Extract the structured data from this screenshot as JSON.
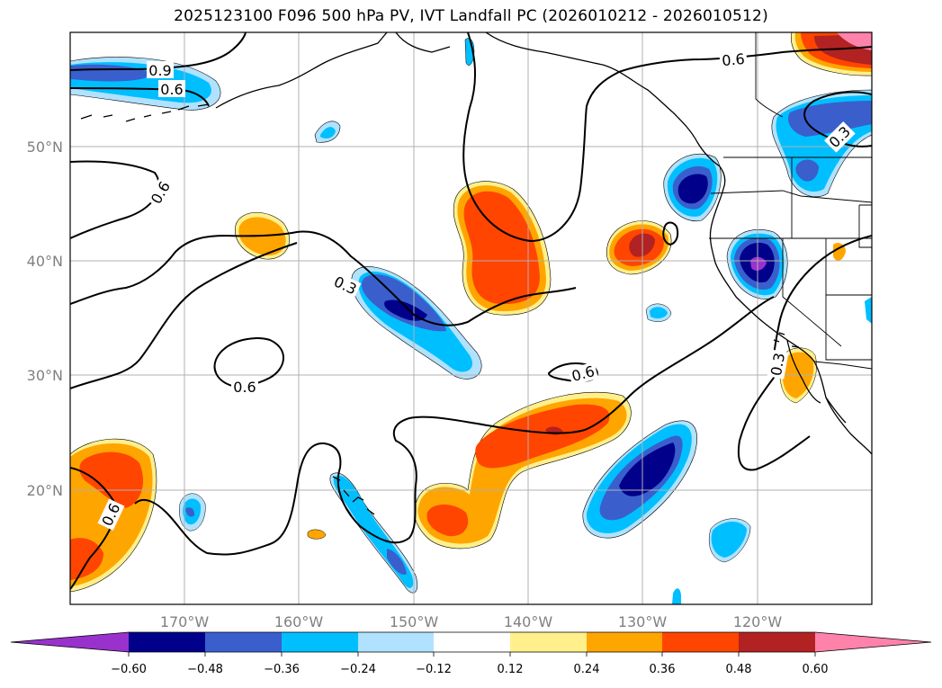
{
  "title": "2025123100 F096 500 hPa PV, IVT Landfall PC (2026010212 - 2026010512)",
  "colors": {
    "purple": "#9932cc",
    "navy": "#00008b",
    "royal": "#3a5fcd",
    "sky": "#00bfff",
    "pale_blue": "#b0e2ff",
    "white": "#ffffff",
    "pale_yellow": "#fff08c",
    "orange": "#ffa500",
    "orange_red": "#ff4500",
    "firebrick": "#b22222",
    "pink": "#ff82ab"
  },
  "axes": {
    "lat_ticks": [
      "50°N",
      "40°N",
      "30°N",
      "20°N"
    ],
    "lon_ticks": [
      "170°W",
      "160°W",
      "150°W",
      "140°W",
      "130°W",
      "120°W"
    ]
  },
  "colorbar": {
    "tick_labels": [
      "−0.60",
      "−0.48",
      "−0.36",
      "−0.24",
      "−0.12",
      "0.12",
      "0.24",
      "0.36",
      "0.48",
      "0.60"
    ]
  },
  "contour_labels": [
    "0.9",
    "0.6",
    "0.6",
    "0.6",
    "0.3",
    "0.6",
    "0.6",
    "0.6",
    "0.3",
    "0.3"
  ],
  "map_data": {
    "lon_range": [
      -180,
      -110
    ],
    "lat_range": [
      10,
      60
    ],
    "contour_field": "500 hPa PV principal component",
    "shading": "IVT landfall principal component"
  }
}
